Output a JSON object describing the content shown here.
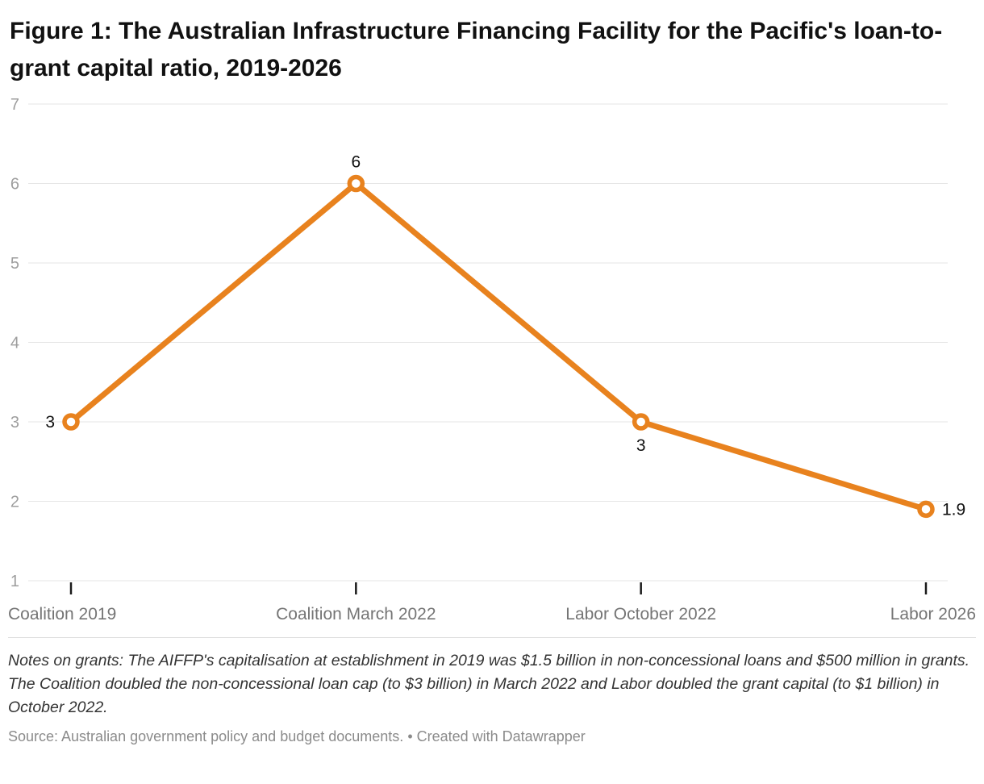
{
  "title": "Figure 1: The Australian Infrastructure Financing Facility for the Pacific's loan-to-grant capital ratio, 2019-2026",
  "chart_data": {
    "type": "line",
    "categories": [
      "Coalition 2019",
      "Coalition March 2022",
      "Labor October 2022",
      "Labor 2026"
    ],
    "values": [
      3,
      6,
      3,
      1.9
    ],
    "point_labels": [
      "3",
      "6",
      "3",
      "1.9"
    ],
    "ylim": [
      1,
      7
    ],
    "yticks": [
      1,
      2,
      3,
      4,
      5,
      6,
      7
    ],
    "grid": true,
    "legend": "none",
    "line_color": "#e8821e",
    "marker_fill": "#ffffff",
    "grid_color": "#e6e6e6",
    "ytick_color": "#9e9e9e",
    "xlabel_color": "#757575",
    "data_label_color": "#111111",
    "tick_mark_color": "#1a1a1a"
  },
  "notes": "Notes on grants: The AIFFP's capitalisation at establishment in 2019 was $1.5 billion in non-concessional loans and $500 million in grants. The Coalition doubled the non-concessional loan cap (to $3 billion) in March 2022 and Labor doubled the grant capital (to $1 billion) in October 2022.",
  "source_text": "Source: Australian government policy and budget documents.",
  "source_separator": " • ",
  "attribution": "Created with Datawrapper"
}
